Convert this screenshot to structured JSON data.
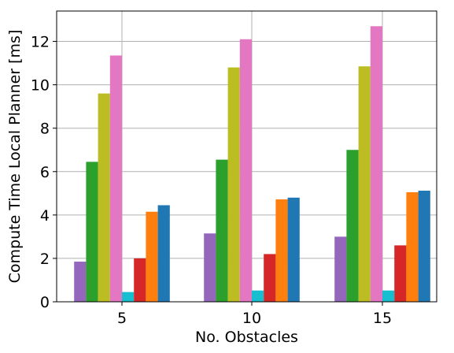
{
  "chart_data": {
    "type": "bar",
    "xlabel": "No. Obstacles",
    "ylabel": "Compute Time Local Planner [ms]",
    "categories": [
      "5",
      "10",
      "15"
    ],
    "ylim": [
      0,
      13.4
    ],
    "yticks": [
      0,
      2,
      4,
      6,
      8,
      10,
      12
    ],
    "grid": true,
    "legend": "none",
    "series": [
      {
        "color": "#9467bd",
        "values": [
          1.85,
          3.15,
          3.0
        ]
      },
      {
        "color": "#2ca02c",
        "values": [
          6.45,
          6.55,
          7.0
        ]
      },
      {
        "color": "#bcbd22",
        "values": [
          9.6,
          10.8,
          10.85
        ]
      },
      {
        "color": "#e377c2",
        "values": [
          11.35,
          12.1,
          12.7
        ]
      },
      {
        "color": "#17becf",
        "values": [
          0.45,
          0.52,
          0.52
        ]
      },
      {
        "color": "#d62728",
        "values": [
          2.0,
          2.2,
          2.6
        ]
      },
      {
        "color": "#ff7f0e",
        "values": [
          4.15,
          4.72,
          5.05
        ]
      },
      {
        "color": "#1f77b4",
        "values": [
          4.45,
          4.8,
          5.12
        ]
      }
    ]
  }
}
